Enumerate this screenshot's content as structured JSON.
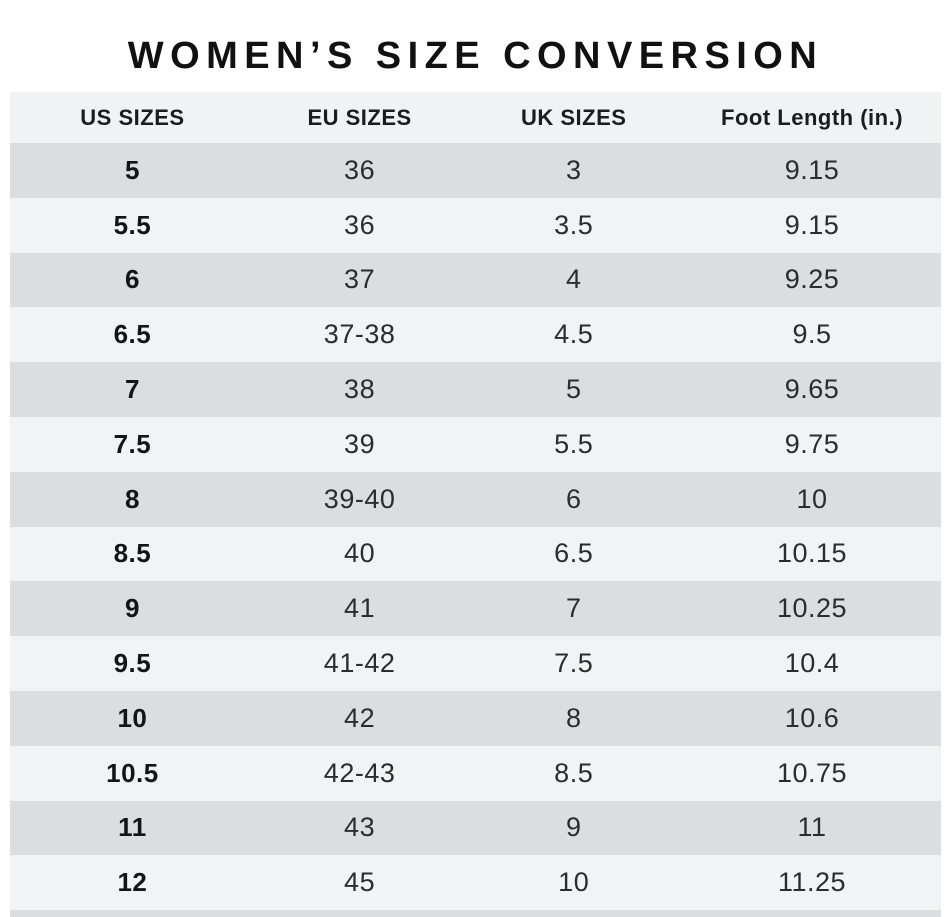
{
  "title": "WOMEN’S SIZE CONVERSION",
  "table": {
    "headers": [
      "US SIZES",
      "EU SIZES",
      "UK SIZES",
      "Foot Length (in.)"
    ],
    "rows": [
      [
        "5",
        "36",
        "3",
        "9.15"
      ],
      [
        "5.5",
        "36",
        "3.5",
        "9.15"
      ],
      [
        "6",
        "37",
        "4",
        "9.25"
      ],
      [
        "6.5",
        "37-38",
        "4.5",
        "9.5"
      ],
      [
        "7",
        "38",
        "5",
        "9.65"
      ],
      [
        "7.5",
        "39",
        "5.5",
        "9.75"
      ],
      [
        "8",
        "39-40",
        "6",
        "10"
      ],
      [
        "8.5",
        "40",
        "6.5",
        "10.15"
      ],
      [
        "9",
        "41",
        "7",
        "10.25"
      ],
      [
        "9.5",
        "41-42",
        "7.5",
        "10.4"
      ],
      [
        "10",
        "42",
        "8",
        "10.6"
      ],
      [
        "10.5",
        "42-43",
        "8.5",
        "10.75"
      ],
      [
        "11",
        "43",
        "9",
        "11"
      ],
      [
        "12",
        "45",
        "10",
        "11.25"
      ]
    ]
  },
  "colors": {
    "row_dark": "#dcdde0",
    "row_light": "#f2f3f4",
    "header_bg": "#f1f2f3",
    "text": "#2c2c2f",
    "text_bold": "#141416",
    "title_text": "#111114",
    "page_bg": "#ffffff"
  }
}
